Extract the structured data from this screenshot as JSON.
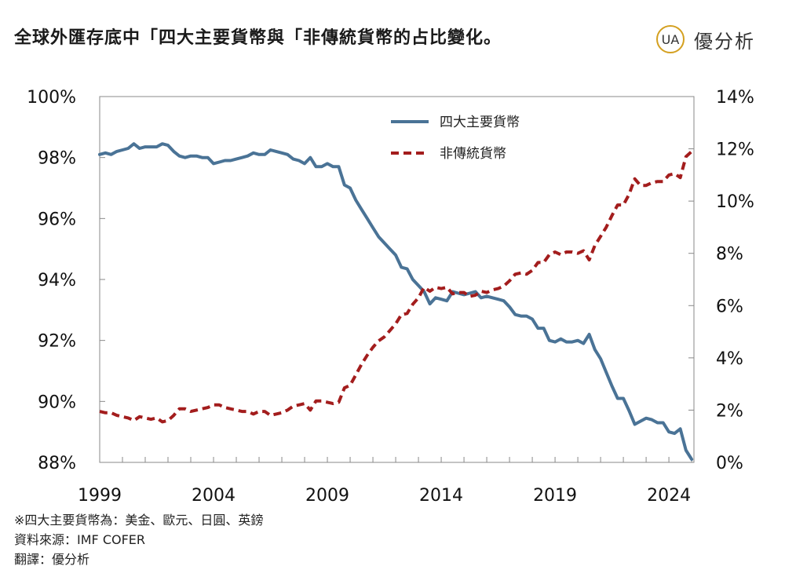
{
  "header": {
    "title": "全球外匯存底中「四大主要貨幣與「非傳統貨幣的占比變化。",
    "brand_name": "優分析",
    "brand_logo_text": "UA"
  },
  "notes": {
    "line1": "※四大主要貨幣為：美金、歐元、日圓、英鎊",
    "line2": "資料來源：IMF COFER",
    "line3": "翻譯：優分析"
  },
  "colors": {
    "major": "#4a7396",
    "nontrad": "#a31d1d",
    "logo_gold": "#d4a020"
  },
  "chart_data": {
    "type": "line",
    "title": "",
    "xlabel": "",
    "x_ticks": [
      "1999",
      "2004",
      "2009",
      "2014",
      "2019",
      "2024"
    ],
    "xlim": [
      1999,
      2025.1
    ],
    "y_left": {
      "range": [
        88,
        100
      ],
      "ticks": [
        "88%",
        "90%",
        "92%",
        "94%",
        "96%",
        "98%",
        "100%"
      ]
    },
    "y_right": {
      "range": [
        0,
        14
      ],
      "ticks": [
        "0%",
        "2%",
        "4%",
        "6%",
        "8%",
        "10%",
        "12%",
        "14%"
      ]
    },
    "legend_position": "top-center",
    "series": [
      {
        "name": "四大主要貨幣",
        "axis": "left",
        "style": "solid",
        "points": [
          [
            1999.0,
            98.1
          ],
          [
            1999.25,
            98.15
          ],
          [
            1999.5,
            98.1
          ],
          [
            1999.75,
            98.2
          ],
          [
            2000.0,
            98.25
          ],
          [
            2000.25,
            98.3
          ],
          [
            2000.5,
            98.45
          ],
          [
            2000.75,
            98.3
          ],
          [
            2001.0,
            98.35
          ],
          [
            2001.25,
            98.35
          ],
          [
            2001.5,
            98.35
          ],
          [
            2001.75,
            98.45
          ],
          [
            2002.0,
            98.4
          ],
          [
            2002.25,
            98.2
          ],
          [
            2002.5,
            98.05
          ],
          [
            2002.75,
            98.0
          ],
          [
            2003.0,
            98.05
          ],
          [
            2003.25,
            98.05
          ],
          [
            2003.5,
            98.0
          ],
          [
            2003.75,
            98.0
          ],
          [
            2004.0,
            97.8
          ],
          [
            2004.25,
            97.85
          ],
          [
            2004.5,
            97.9
          ],
          [
            2004.75,
            97.9
          ],
          [
            2005.0,
            97.95
          ],
          [
            2005.25,
            98.0
          ],
          [
            2005.5,
            98.05
          ],
          [
            2005.75,
            98.15
          ],
          [
            2006.0,
            98.1
          ],
          [
            2006.25,
            98.1
          ],
          [
            2006.5,
            98.25
          ],
          [
            2006.75,
            98.2
          ],
          [
            2007.0,
            98.15
          ],
          [
            2007.25,
            98.1
          ],
          [
            2007.5,
            97.95
          ],
          [
            2007.75,
            97.9
          ],
          [
            2008.0,
            97.8
          ],
          [
            2008.25,
            98.0
          ],
          [
            2008.5,
            97.7
          ],
          [
            2008.75,
            97.7
          ],
          [
            2009.0,
            97.8
          ],
          [
            2009.25,
            97.7
          ],
          [
            2009.5,
            97.7
          ],
          [
            2009.75,
            97.1
          ],
          [
            2010.0,
            97.0
          ],
          [
            2010.25,
            96.6
          ],
          [
            2010.5,
            96.3
          ],
          [
            2010.75,
            96.0
          ],
          [
            2011.0,
            95.7
          ],
          [
            2011.25,
            95.4
          ],
          [
            2011.5,
            95.2
          ],
          [
            2011.75,
            95.0
          ],
          [
            2012.0,
            94.8
          ],
          [
            2012.25,
            94.4
          ],
          [
            2012.5,
            94.35
          ],
          [
            2012.75,
            94.0
          ],
          [
            2013.0,
            93.8
          ],
          [
            2013.25,
            93.6
          ],
          [
            2013.5,
            93.2
          ],
          [
            2013.75,
            93.4
          ],
          [
            2014.0,
            93.35
          ],
          [
            2014.25,
            93.3
          ],
          [
            2014.5,
            93.6
          ],
          [
            2014.75,
            93.55
          ],
          [
            2015.0,
            93.5
          ],
          [
            2015.25,
            93.55
          ],
          [
            2015.5,
            93.6
          ],
          [
            2015.75,
            93.4
          ],
          [
            2016.0,
            93.45
          ],
          [
            2016.25,
            93.4
          ],
          [
            2016.5,
            93.35
          ],
          [
            2016.75,
            93.3
          ],
          [
            2017.0,
            93.1
          ],
          [
            2017.25,
            92.85
          ],
          [
            2017.5,
            92.8
          ],
          [
            2017.75,
            92.8
          ],
          [
            2018.0,
            92.7
          ],
          [
            2018.25,
            92.4
          ],
          [
            2018.5,
            92.4
          ],
          [
            2018.75,
            92.0
          ],
          [
            2019.0,
            91.95
          ],
          [
            2019.25,
            92.05
          ],
          [
            2019.5,
            91.95
          ],
          [
            2019.75,
            91.95
          ],
          [
            2020.0,
            92.0
          ],
          [
            2020.25,
            91.9
          ],
          [
            2020.5,
            92.2
          ],
          [
            2020.75,
            91.7
          ],
          [
            2021.0,
            91.4
          ],
          [
            2021.25,
            90.95
          ],
          [
            2021.5,
            90.5
          ],
          [
            2021.75,
            90.1
          ],
          [
            2022.0,
            90.1
          ],
          [
            2022.25,
            89.7
          ],
          [
            2022.5,
            89.25
          ],
          [
            2022.75,
            89.35
          ],
          [
            2023.0,
            89.45
          ],
          [
            2023.25,
            89.4
          ],
          [
            2023.5,
            89.3
          ],
          [
            2023.75,
            89.3
          ],
          [
            2024.0,
            89.0
          ],
          [
            2024.25,
            88.95
          ],
          [
            2024.5,
            89.1
          ],
          [
            2024.75,
            88.4
          ],
          [
            2025.0,
            88.1
          ]
        ]
      },
      {
        "name": "非傳統貨幣",
        "axis": "right",
        "style": "dashed",
        "points": [
          [
            1999.0,
            1.95
          ],
          [
            1999.25,
            1.9
          ],
          [
            1999.5,
            1.9
          ],
          [
            1999.75,
            1.8
          ],
          [
            2000.0,
            1.75
          ],
          [
            2000.25,
            1.7
          ],
          [
            2000.5,
            1.6
          ],
          [
            2000.75,
            1.75
          ],
          [
            2001.0,
            1.7
          ],
          [
            2001.25,
            1.65
          ],
          [
            2001.5,
            1.7
          ],
          [
            2001.75,
            1.55
          ],
          [
            2002.0,
            1.6
          ],
          [
            2002.25,
            1.8
          ],
          [
            2002.5,
            2.05
          ],
          [
            2002.75,
            2.05
          ],
          [
            2003.0,
            1.95
          ],
          [
            2003.25,
            2.0
          ],
          [
            2003.5,
            2.05
          ],
          [
            2003.75,
            2.1
          ],
          [
            2004.0,
            2.2
          ],
          [
            2004.25,
            2.2
          ],
          [
            2004.5,
            2.1
          ],
          [
            2004.75,
            2.05
          ],
          [
            2005.0,
            2.0
          ],
          [
            2005.25,
            1.95
          ],
          [
            2005.5,
            1.95
          ],
          [
            2005.75,
            1.85
          ],
          [
            2006.0,
            1.95
          ],
          [
            2006.25,
            1.95
          ],
          [
            2006.5,
            1.8
          ],
          [
            2006.75,
            1.85
          ],
          [
            2007.0,
            1.9
          ],
          [
            2007.25,
            2.0
          ],
          [
            2007.5,
            2.15
          ],
          [
            2007.75,
            2.2
          ],
          [
            2008.0,
            2.25
          ],
          [
            2008.25,
            2.0
          ],
          [
            2008.5,
            2.35
          ],
          [
            2008.75,
            2.35
          ],
          [
            2009.0,
            2.3
          ],
          [
            2009.25,
            2.25
          ],
          [
            2009.5,
            2.3
          ],
          [
            2009.75,
            2.85
          ],
          [
            2010.0,
            2.95
          ],
          [
            2010.25,
            3.35
          ],
          [
            2010.5,
            3.75
          ],
          [
            2010.75,
            4.1
          ],
          [
            2011.0,
            4.4
          ],
          [
            2011.25,
            4.65
          ],
          [
            2011.5,
            4.8
          ],
          [
            2011.75,
            5.05
          ],
          [
            2012.0,
            5.3
          ],
          [
            2012.25,
            5.65
          ],
          [
            2012.5,
            5.7
          ],
          [
            2012.75,
            6.05
          ],
          [
            2013.0,
            6.3
          ],
          [
            2013.25,
            6.7
          ],
          [
            2013.5,
            6.55
          ],
          [
            2013.75,
            6.7
          ],
          [
            2014.0,
            6.65
          ],
          [
            2014.25,
            6.7
          ],
          [
            2014.5,
            6.45
          ],
          [
            2014.75,
            6.5
          ],
          [
            2015.0,
            6.5
          ],
          [
            2015.25,
            6.35
          ],
          [
            2015.5,
            6.4
          ],
          [
            2015.75,
            6.55
          ],
          [
            2016.0,
            6.5
          ],
          [
            2016.25,
            6.6
          ],
          [
            2016.5,
            6.65
          ],
          [
            2016.75,
            6.75
          ],
          [
            2017.0,
            6.95
          ],
          [
            2017.25,
            7.2
          ],
          [
            2017.5,
            7.25
          ],
          [
            2017.75,
            7.2
          ],
          [
            2018.0,
            7.35
          ],
          [
            2018.25,
            7.65
          ],
          [
            2018.5,
            7.65
          ],
          [
            2018.75,
            7.95
          ],
          [
            2019.0,
            8.05
          ],
          [
            2019.25,
            7.95
          ],
          [
            2019.5,
            8.05
          ],
          [
            2019.75,
            8.05
          ],
          [
            2020.0,
            8.0
          ],
          [
            2020.25,
            8.1
          ],
          [
            2020.5,
            7.75
          ],
          [
            2020.75,
            8.3
          ],
          [
            2021.0,
            8.65
          ],
          [
            2021.25,
            9.0
          ],
          [
            2021.5,
            9.45
          ],
          [
            2021.75,
            9.85
          ],
          [
            2022.0,
            9.85
          ],
          [
            2022.25,
            10.25
          ],
          [
            2022.5,
            10.85
          ],
          [
            2022.75,
            10.6
          ],
          [
            2023.0,
            10.6
          ],
          [
            2023.25,
            10.7
          ],
          [
            2023.5,
            10.75
          ],
          [
            2023.75,
            10.75
          ],
          [
            2024.0,
            11.0
          ],
          [
            2024.25,
            11.05
          ],
          [
            2024.5,
            10.9
          ],
          [
            2024.75,
            11.7
          ],
          [
            2025.0,
            11.9
          ]
        ]
      }
    ]
  }
}
